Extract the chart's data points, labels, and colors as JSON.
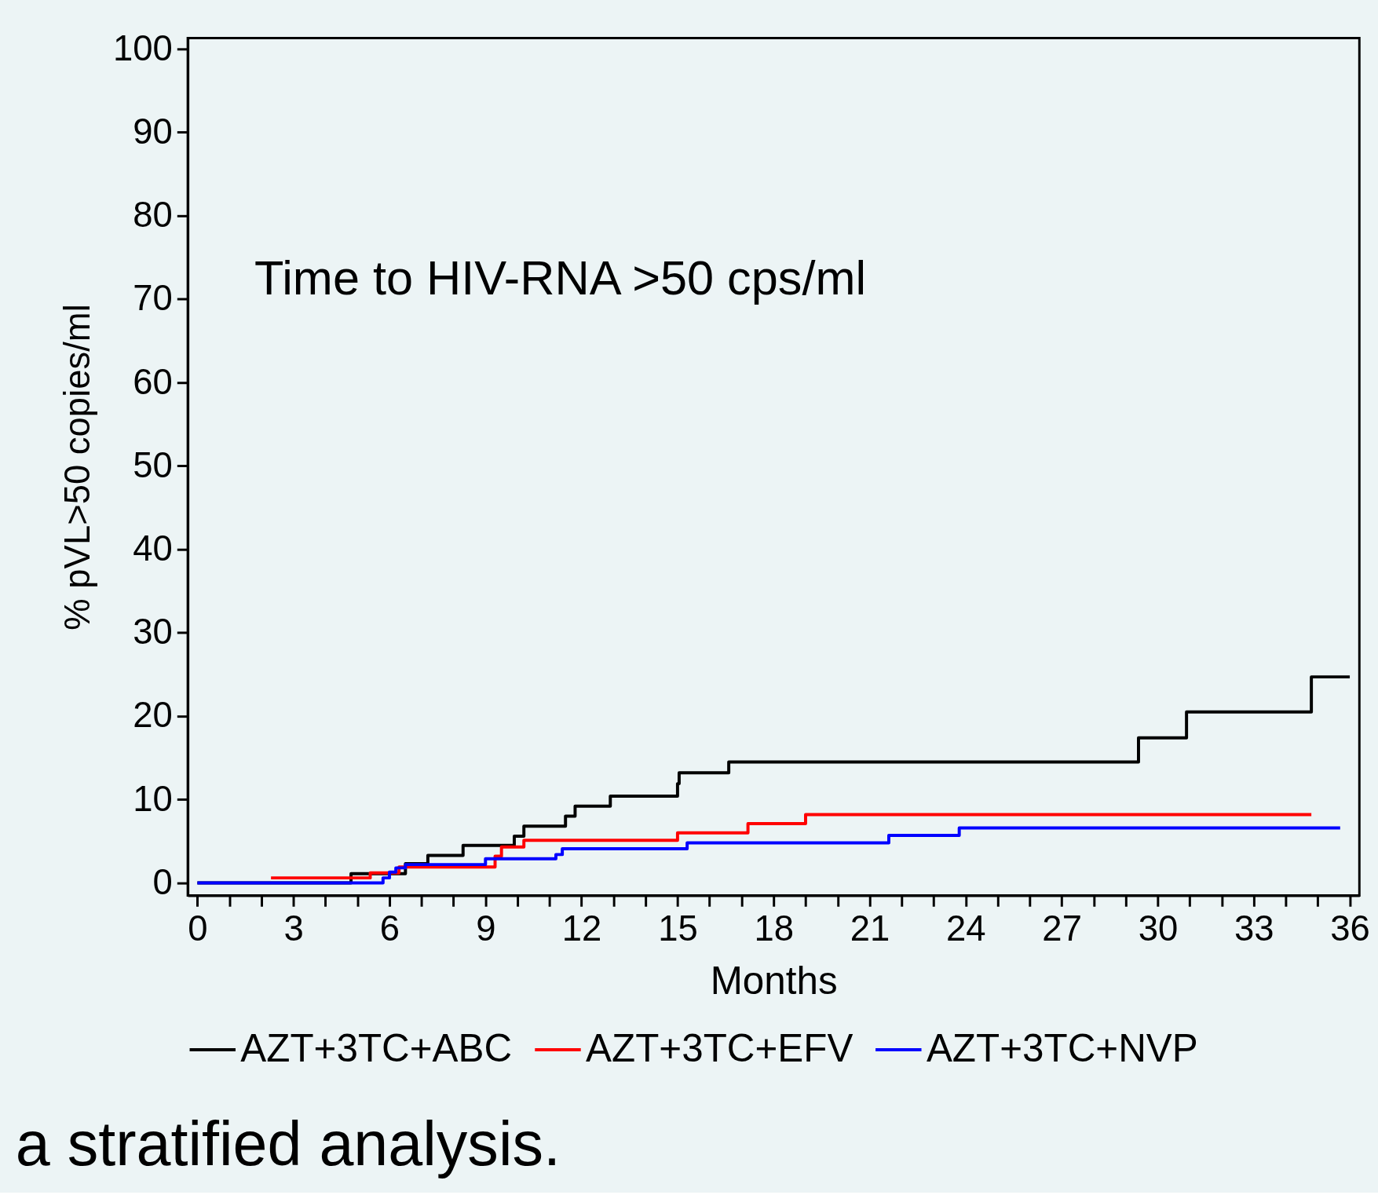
{
  "chart_data": {
    "type": "step",
    "xlabel": "Months",
    "ylabel": "% pVL>50 copies/ml",
    "annotations": [
      "Time to HIV-RNA >50 cps/ml",
      "a stratified analysis."
    ],
    "series": [
      {
        "name": "AZT+3TC+ABC",
        "color": "#000000",
        "x": [
          0,
          4.8,
          6.5,
          7.2,
          8.3,
          9.9,
          10.2,
          11.5,
          11.8,
          12.9,
          15.0,
          15.05,
          16.6,
          29.4,
          30.9,
          34.8,
          36.0
        ],
        "values": [
          0,
          1.1,
          2.3,
          3.3,
          4.5,
          5.6,
          6.8,
          8.0,
          9.2,
          10.4,
          11.9,
          13.2,
          14.5,
          17.4,
          20.5,
          24.7,
          24.7
        ]
      },
      {
        "name": "AZT+3TC+EFV",
        "color": "#ff0000",
        "x": [
          2.3,
          5.4,
          6.3,
          9.3,
          9.5,
          10.2,
          15.0,
          17.2,
          19.0,
          34.8
        ],
        "values": [
          0.6,
          1.2,
          1.9,
          3.2,
          4.3,
          5.1,
          6.0,
          7.1,
          8.2,
          8.2
        ]
      },
      {
        "name": "AZT+3TC+NVP",
        "color": "#0000ff",
        "x": [
          0,
          5.8,
          6.0,
          6.2,
          6.5,
          9.0,
          11.2,
          11.4,
          15.3,
          21.6,
          23.8,
          35.7
        ],
        "values": [
          0,
          0.6,
          1.3,
          1.8,
          2.2,
          2.9,
          3.4,
          4.1,
          4.8,
          5.7,
          6.6,
          6.6
        ]
      }
    ],
    "xlim": [
      -0.3,
      36.3
    ],
    "ylim": [
      -1.5,
      101.3
    ],
    "xticks": [
      0,
      {
        "value": 1,
        "label": null
      },
      {
        "value": 2,
        "label": null
      },
      3,
      {
        "value": 4,
        "label": null
      },
      {
        "value": 5,
        "label": null
      },
      6,
      {
        "value": 7,
        "label": null
      },
      {
        "value": 8,
        "label": null
      },
      9,
      {
        "value": 10,
        "label": null
      },
      {
        "value": 11,
        "label": null
      },
      12,
      {
        "value": 13,
        "label": null
      },
      {
        "value": 14,
        "label": null
      },
      15,
      {
        "value": 16,
        "label": null
      },
      {
        "value": 17,
        "label": null
      },
      18,
      {
        "value": 19,
        "label": null
      },
      {
        "value": 20,
        "label": null
      },
      21,
      {
        "value": 22,
        "label": null
      },
      {
        "value": 23,
        "label": null
      },
      24,
      {
        "value": 25,
        "label": null
      },
      {
        "value": 26,
        "label": null
      },
      27,
      {
        "value": 28,
        "label": null
      },
      {
        "value": 29,
        "label": null
      },
      30,
      {
        "value": 31,
        "label": null
      },
      {
        "value": 32,
        "label": null
      },
      33,
      {
        "value": 34,
        "label": null
      },
      {
        "value": 35,
        "label": null
      },
      36
    ],
    "yticks": [
      0,
      10,
      20,
      30,
      40,
      50,
      60,
      70,
      80,
      90,
      100
    ],
    "grid": false,
    "legend": "bottom",
    "line_style": "solid"
  }
}
